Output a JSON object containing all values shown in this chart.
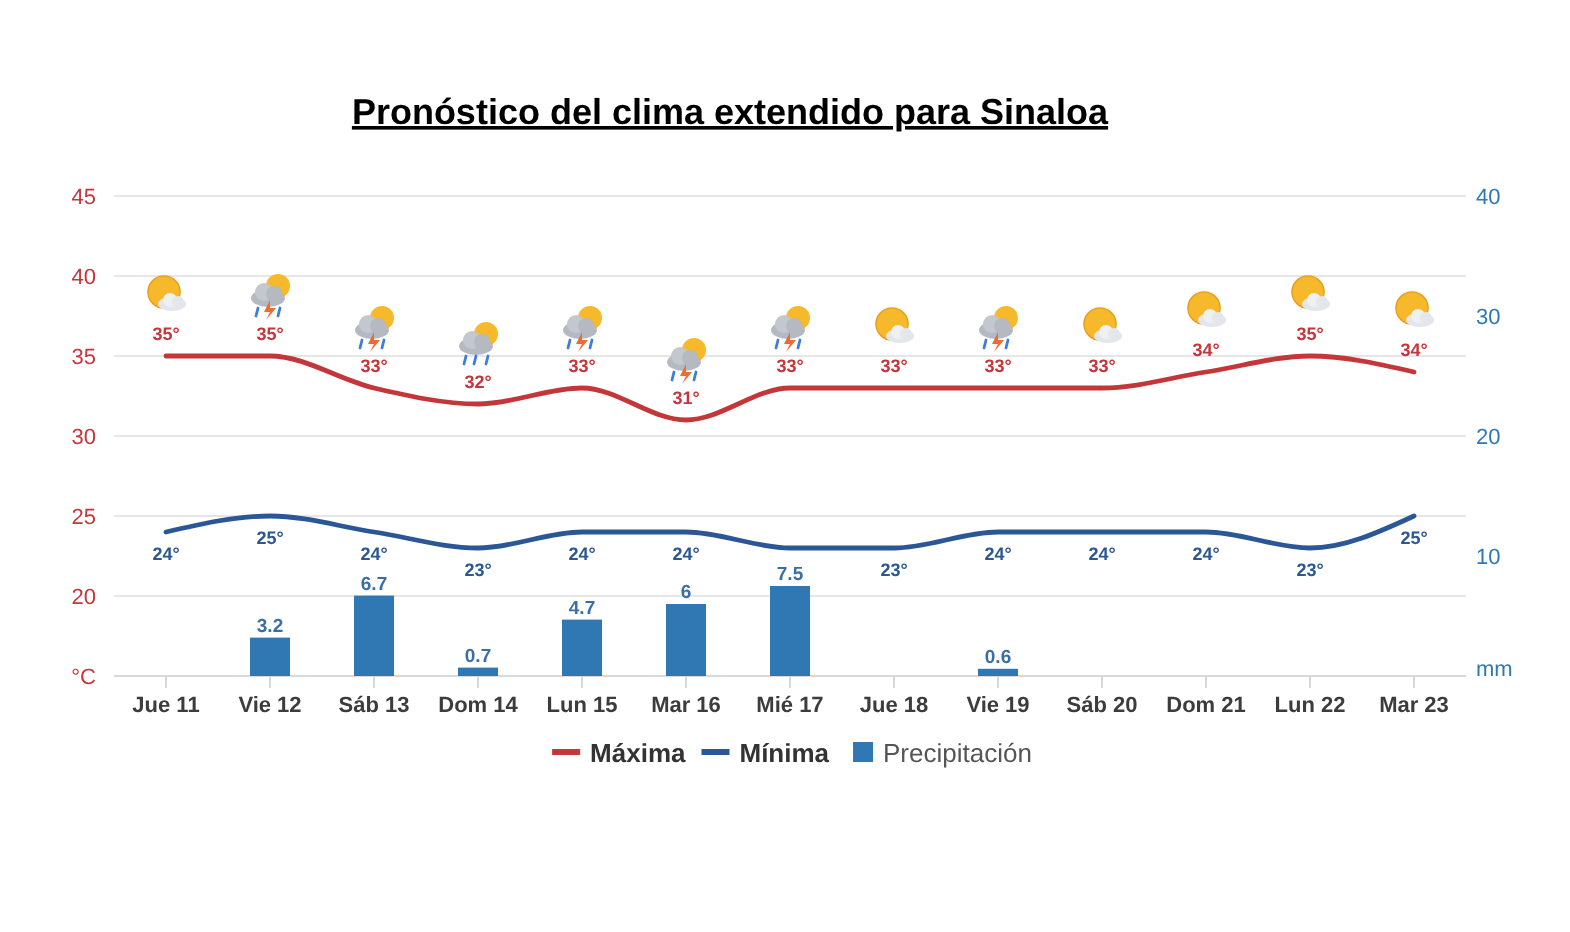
{
  "chart_data": {
    "type": "line",
    "title": "Pronóstico del clima extendido para Sinaloa",
    "categories": [
      "Jue 11",
      "Vie 12",
      "Sáb 13",
      "Dom 14",
      "Lun 15",
      "Mar 16",
      "Mié 17",
      "Jue 18",
      "Vie 19",
      "Sáb 20",
      "Dom 21",
      "Lun 22",
      "Mar 23"
    ],
    "series": [
      {
        "name": "Máxima",
        "color": "#c3373b",
        "values": [
          35,
          35,
          33,
          32,
          33,
          31,
          33,
          33,
          33,
          33,
          34,
          35,
          34
        ],
        "value_labels": [
          "35°",
          "35°",
          "33°",
          "32°",
          "33°",
          "31°",
          "33°",
          "33°",
          "33°",
          "33°",
          "34°",
          "35°",
          "34°"
        ]
      },
      {
        "name": "Mínima",
        "color": "#2b5797",
        "values": [
          24,
          25,
          24,
          23,
          24,
          24,
          23,
          23,
          24,
          24,
          24,
          23,
          25
        ],
        "value_labels": [
          "24°",
          "25°",
          "24°",
          "23°",
          "24°",
          "24°",
          null,
          "23°",
          "24°",
          "24°",
          "24°",
          "23°",
          "25°"
        ]
      },
      {
        "name": "Precipitación",
        "type": "bar",
        "axis": "y2",
        "color": "#2f78b4",
        "values": [
          null,
          3.2,
          6.7,
          0.7,
          4.7,
          6,
          7.5,
          null,
          0.6,
          null,
          null,
          null,
          null
        ],
        "value_labels": [
          null,
          "3.2",
          "6.7",
          "0.7",
          "4.7",
          "6",
          "7.5",
          null,
          "0.6",
          null,
          null,
          null,
          null
        ]
      }
    ],
    "ylim": [
      15,
      45
    ],
    "yticks": [
      {
        "value": 15,
        "label": "°C"
      },
      20,
      25,
      30,
      35,
      40,
      45
    ],
    "y2lim": [
      0,
      40
    ],
    "y2ticks": [
      {
        "value": 0,
        "label": "mm"
      },
      10,
      20,
      30,
      40
    ],
    "grid": "y",
    "legend": "bottom",
    "marker": "none",
    "line_style": "solid"
  }
}
